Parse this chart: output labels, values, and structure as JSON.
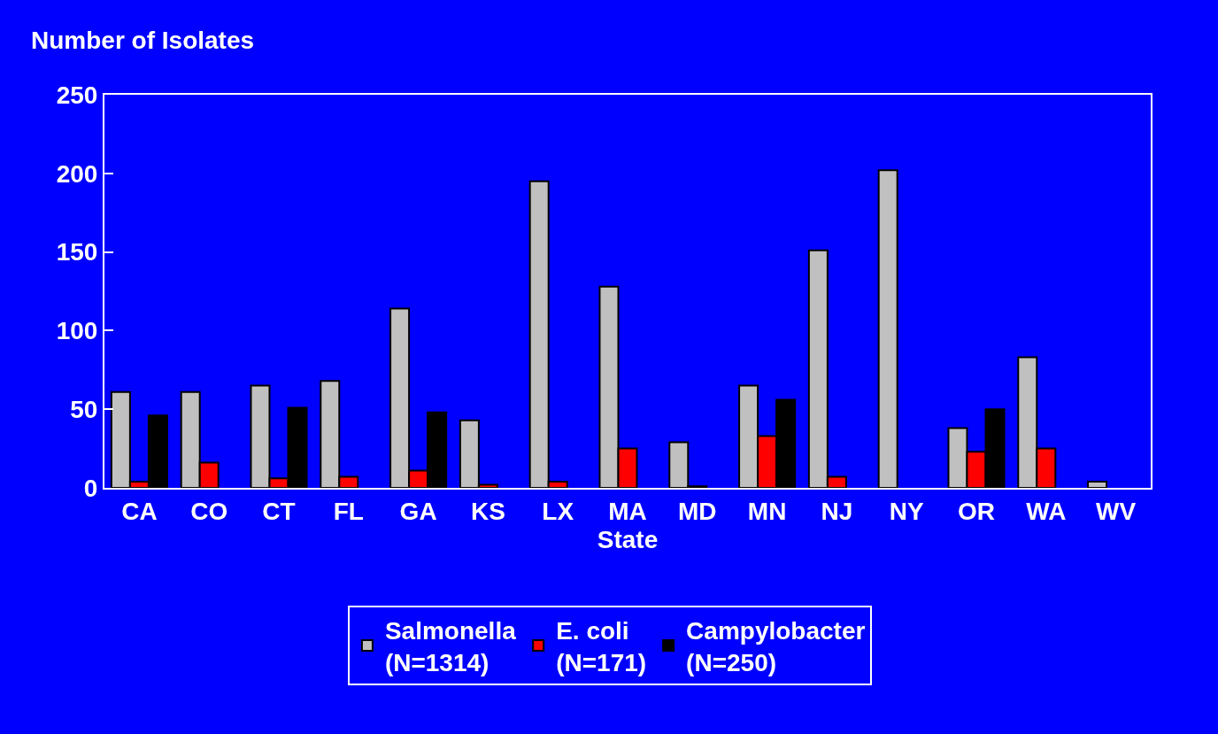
{
  "chart_data": {
    "type": "bar",
    "xlabel": "State",
    "ylabel": "Number of Isolates",
    "categories": [
      "CA",
      "CO",
      "CT",
      "FL",
      "GA",
      "KS",
      "LX",
      "MA",
      "MD",
      "MN",
      "NJ",
      "NY",
      "OR",
      "WA",
      "WV"
    ],
    "series": [
      {
        "name": "Salmonella\n(N=1314)",
        "color": "#c0c0c0",
        "values": [
          61,
          61,
          65,
          68,
          114,
          43,
          195,
          128,
          29,
          65,
          151,
          202,
          38,
          83,
          4
        ]
      },
      {
        "name": "E. coli\n(N=171)",
        "color": "#ff0000",
        "values": [
          4,
          16,
          6,
          7,
          11,
          2,
          4,
          25,
          1,
          33,
          7,
          null,
          23,
          25,
          null
        ]
      },
      {
        "name": "Campylobacter\n(N=250)",
        "color": "#000000",
        "values": [
          46,
          null,
          51,
          null,
          48,
          null,
          null,
          null,
          null,
          56,
          null,
          null,
          50,
          null,
          null
        ]
      }
    ],
    "ylim": [
      0,
      250
    ],
    "yticks": [
      0,
      50,
      100,
      150,
      200,
      250
    ],
    "grid": false,
    "legend": "bottom"
  }
}
